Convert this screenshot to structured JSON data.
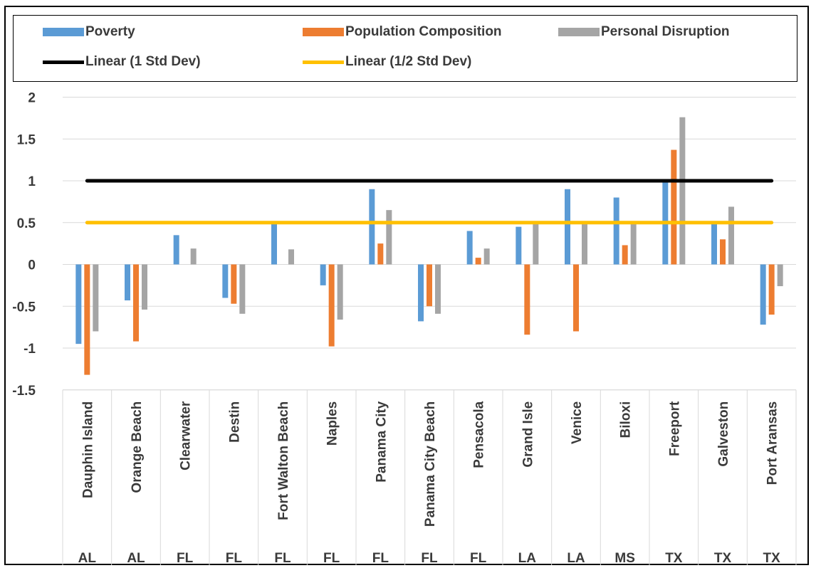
{
  "chart_data": {
    "type": "bar",
    "title": "",
    "xlabel": "",
    "ylabel": "",
    "ylim": [
      -1.5,
      2
    ],
    "yticks": [
      2,
      1.5,
      1,
      0.5,
      0,
      -0.5,
      -1,
      -1.5
    ],
    "ytick_labels": [
      "2",
      "1.5",
      "1",
      "0.5",
      "0",
      "-0.5",
      "-1",
      "-1.5"
    ],
    "grid": true,
    "legend_position": "top",
    "categories": [
      "Dauphin Island",
      "Orange Beach",
      "Clearwater",
      "Destin",
      "Fort Walton Beach",
      "Naples",
      "Panama City",
      "Panama City Beach",
      "Pensacola",
      "Grand Isle",
      "Venice",
      "Biloxi",
      "Freeport",
      "Galveston",
      "Port Aransas"
    ],
    "states": [
      "AL",
      "AL",
      "FL",
      "FL",
      "FL",
      "FL",
      "FL",
      "FL",
      "FL",
      "LA",
      "LA",
      "MS",
      "TX",
      "TX",
      "TX"
    ],
    "series": [
      {
        "name": "Poverty",
        "color": "#5b9bd5",
        "values": [
          -0.95,
          -0.43,
          0.35,
          -0.4,
          0.5,
          -0.25,
          0.9,
          -0.68,
          0.4,
          0.45,
          0.9,
          0.8,
          1.0,
          0.5,
          -0.72
        ]
      },
      {
        "name": "Population Composition",
        "color": "#ed7d31",
        "values": [
          -1.32,
          -0.92,
          0.0,
          -0.47,
          0.0,
          -0.98,
          0.25,
          -0.5,
          0.08,
          -0.84,
          -0.8,
          0.23,
          1.37,
          0.3,
          -0.6
        ]
      },
      {
        "name": "Personal Disruption",
        "color": "#a5a5a5",
        "values": [
          -0.8,
          -0.54,
          0.19,
          -0.59,
          0.18,
          -0.66,
          0.65,
          -0.59,
          0.19,
          0.5,
          0.5,
          0.5,
          1.76,
          0.69,
          -0.26
        ]
      }
    ],
    "lines": [
      {
        "name": "Linear (1 Std Dev)",
        "color": "#000000",
        "value": 1
      },
      {
        "name": "Linear (1/2 Std Dev)",
        "color": "#ffc000",
        "value": 0.5
      }
    ]
  }
}
